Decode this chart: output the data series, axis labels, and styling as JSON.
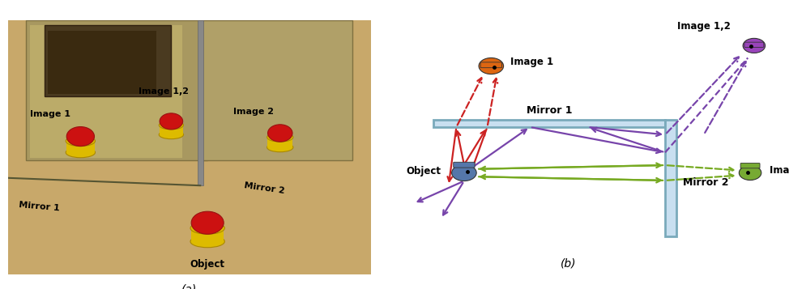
{
  "fig_width": 9.74,
  "fig_height": 3.57,
  "bg_color": "#ffffff",
  "label_a": "(a)",
  "label_b": "(b)",
  "mirror1_label": "Mirror 1",
  "mirror2_label": "Mirror 2",
  "object_label": "Object",
  "image1_label": "Image 1",
  "image2_label": "Image 2",
  "image12_label": "Image 1,2",
  "mirror_fill": "#c8dff0",
  "mirror_edge": "#7aaabb",
  "red_color": "#cc2222",
  "green_color": "#77aa22",
  "purple_color": "#7744aa",
  "obj_color": "#5577aa",
  "img1_color": "#dd6611",
  "img2_color": "#77aa33",
  "img12_color": "#9944bb",
  "photo_bg": "#c8a86a",
  "photo_mirror_bg": "#b09a5a",
  "photo_mirror_silver": "#d0c898"
}
